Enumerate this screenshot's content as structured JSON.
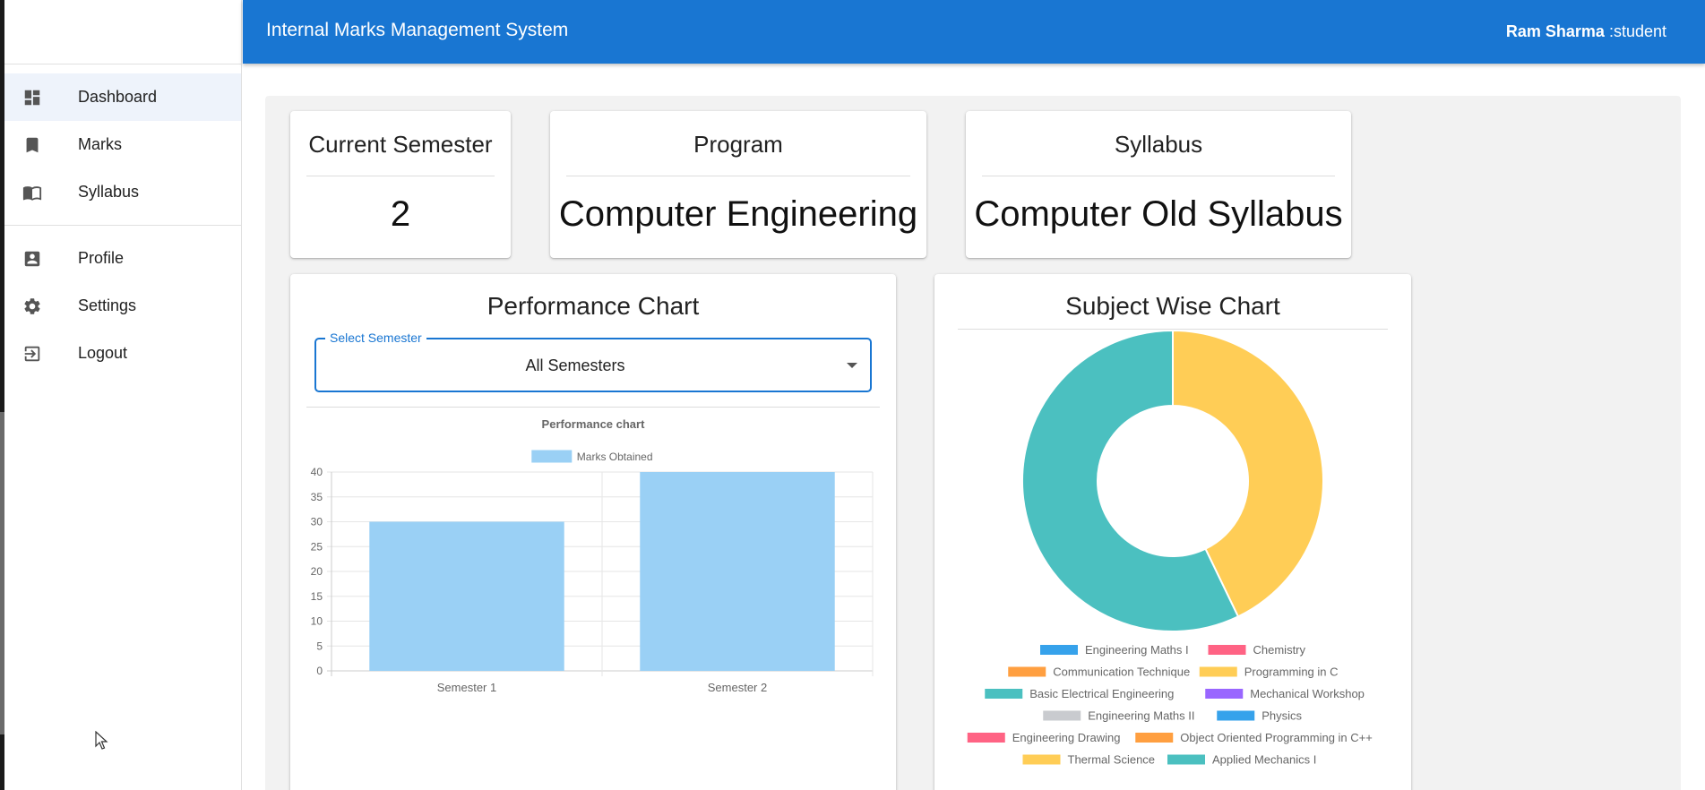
{
  "header": {
    "title": "Internal Marks Management System",
    "user_name": "Ram Sharma",
    "user_role": ":student"
  },
  "sidebar": {
    "primary": [
      {
        "label": "Dashboard",
        "icon": "dashboard-icon",
        "active": true
      },
      {
        "label": "Marks",
        "icon": "bookmark-icon",
        "active": false
      },
      {
        "label": "Syllabus",
        "icon": "book-icon",
        "active": false
      }
    ],
    "secondary": [
      {
        "label": "Profile",
        "icon": "account-box-icon",
        "active": false
      },
      {
        "label": "Settings",
        "icon": "gear-icon",
        "active": false
      },
      {
        "label": "Logout",
        "icon": "logout-icon",
        "active": false
      }
    ]
  },
  "stats": {
    "semester": {
      "title": "Current Semester",
      "value": "2"
    },
    "program": {
      "title": "Program",
      "value": "Computer Engineering"
    },
    "syllabus": {
      "title": "Syllabus",
      "value": "Computer Old Syllabus"
    }
  },
  "performance": {
    "title": "Performance Chart",
    "select_label": "Select Semester",
    "select_value": "All Semesters"
  },
  "subject": {
    "title": "Subject Wise Chart"
  },
  "colors": {
    "primary": "#1976d2",
    "bar": "#9ad0f5",
    "bar_border": "#9ad0f5"
  },
  "chart_data": [
    {
      "type": "bar",
      "title": "Performance chart",
      "categories": [
        "Semester 1",
        "Semester 2"
      ],
      "series": [
        {
          "name": "Marks Obtained",
          "values": [
            30,
            40
          ]
        }
      ],
      "ylim": [
        0,
        40
      ],
      "yticks": [
        0,
        5,
        10,
        15,
        20,
        25,
        30,
        35,
        40
      ],
      "grid": true,
      "legend": "top"
    },
    {
      "type": "pie",
      "donut": true,
      "legend": "bottom",
      "labels": [
        "Engineering Maths I",
        "Chemistry",
        "Communication Technique",
        "Programming in C",
        "Basic Electrical Engineering",
        "Mechanical Workshop",
        "Engineering Maths II",
        "Physics",
        "Engineering Drawing",
        "Object Oriented Programming in C++",
        "Thermal Science",
        "Applied Mechanics I"
      ],
      "colors": [
        "#36a2eb",
        "#ff6384",
        "#ff9f40",
        "#ffcd56",
        "#4bc0c0",
        "#9966ff",
        "#c9cbcf",
        "#36a2eb",
        "#ff6384",
        "#ff9f40",
        "#ffcd56",
        "#4bc0c0"
      ],
      "values": [
        0,
        0,
        0,
        0,
        0,
        0,
        0,
        0,
        0,
        0,
        30,
        40
      ]
    }
  ]
}
